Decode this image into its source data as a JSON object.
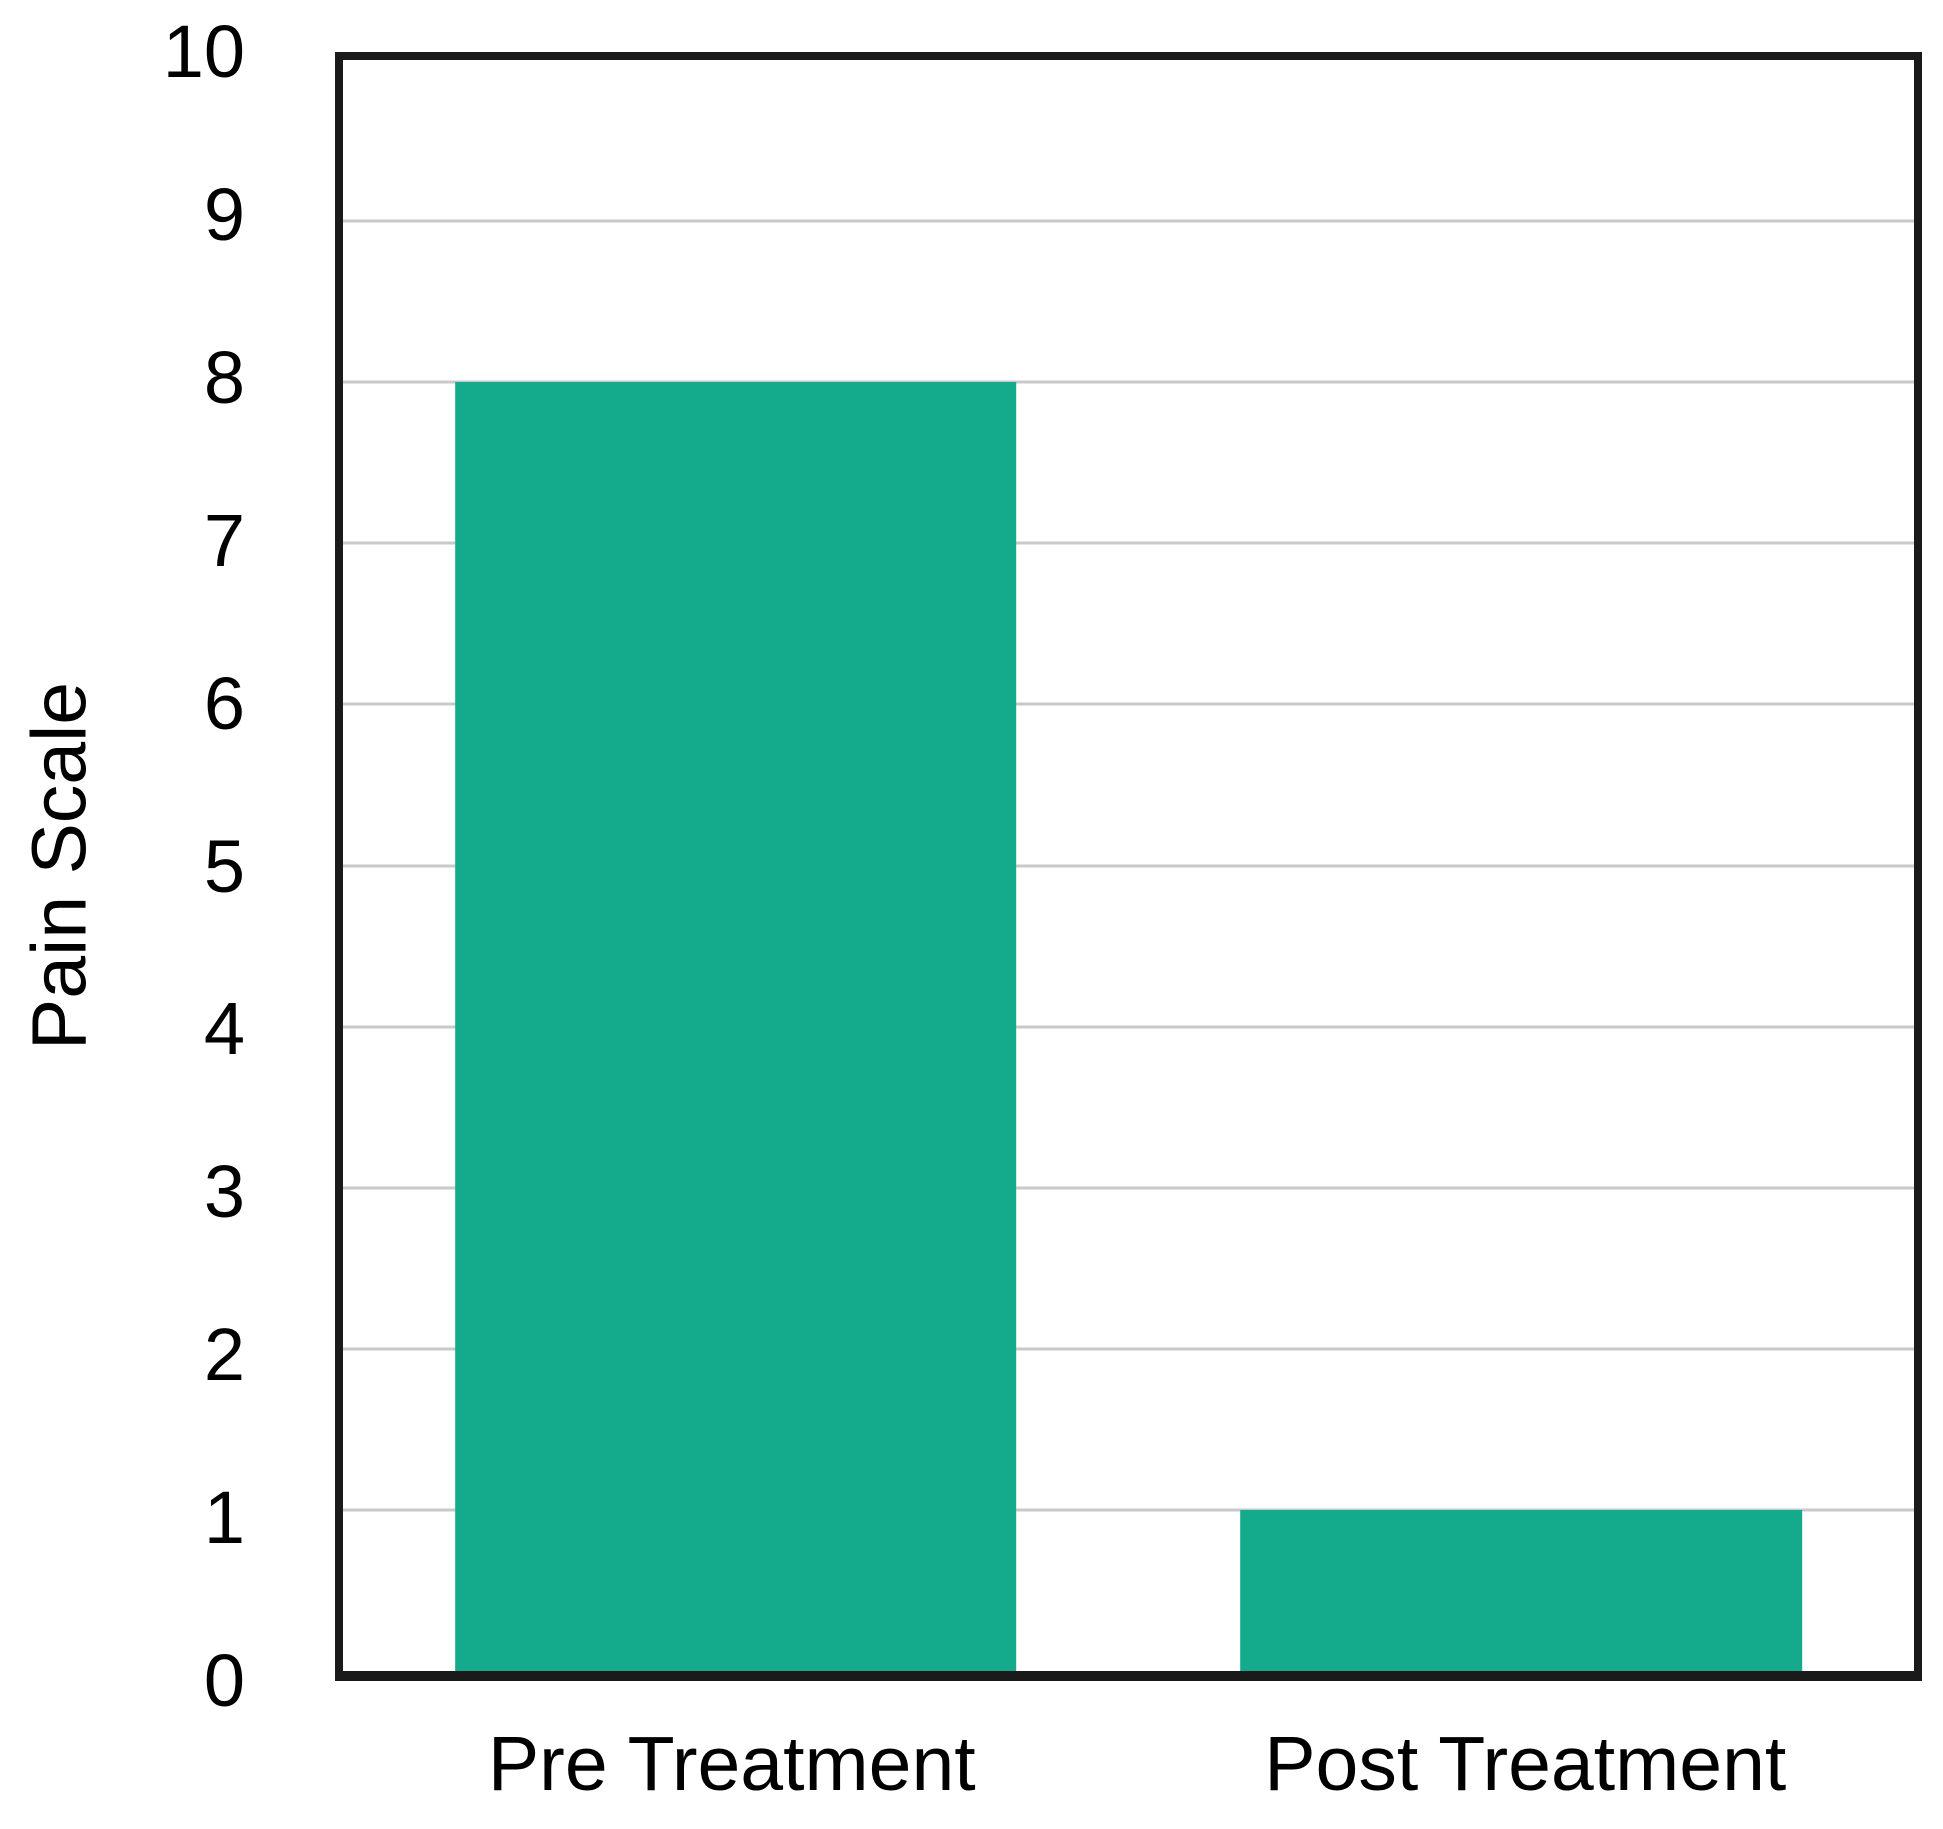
{
  "chart_data": {
    "type": "bar",
    "categories": [
      "Pre Treatment",
      "Post Treatment"
    ],
    "values": [
      8,
      1
    ],
    "title": "",
    "xlabel": "",
    "ylabel": "Pain Scale",
    "ylim": [
      0,
      10
    ],
    "yticks": [
      0,
      1,
      2,
      3,
      4,
      5,
      6,
      7,
      8,
      9,
      10
    ],
    "gridlines_at": [
      1,
      2,
      3,
      4,
      5,
      6,
      7,
      8,
      9
    ],
    "grid": true,
    "legend": "none",
    "colors": {
      "bar": "#14AB8D",
      "frame": "#1a1a1a",
      "gridline": "#c9c9c9",
      "text": "#000000",
      "background": "#ffffff"
    }
  }
}
